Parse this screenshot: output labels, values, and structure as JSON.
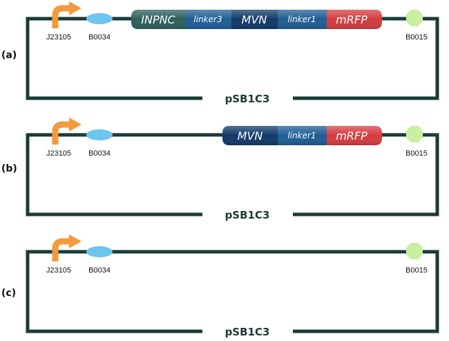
{
  "colors": {
    "backbone": "#1b3b37",
    "promoter": "#f39a3c",
    "rbs": "#6cc4ef",
    "terminator": "#c8f0a0",
    "INPNC": "#2f5f5b",
    "linker3": "#1e5e96",
    "MVN": "#123a68",
    "linker1": "#1f5d94",
    "mRFP": "#d33c40"
  },
  "icons": {
    "promoter": "bent-arrow-icon",
    "rbs": "ellipse-icon",
    "terminator": "octagon-icon"
  },
  "panels": [
    {
      "label": "(a)",
      "plasmid": "pSB1C3",
      "promoter": "J23105",
      "rbs": "B0034",
      "terminator": "B0015",
      "fusion": [
        "INPNC",
        "linker3",
        "MVN",
        "linker1",
        "mRFP"
      ]
    },
    {
      "label": "(b)",
      "plasmid": "pSB1C3",
      "promoter": "J23105",
      "rbs": "B0034",
      "terminator": "B0015",
      "fusion": [
        "MVN",
        "linker1",
        "mRFP"
      ]
    },
    {
      "label": "(c)",
      "plasmid": "pSB1C3",
      "promoter": "J23105",
      "rbs": "B0034",
      "terminator": "B0015",
      "fusion": []
    }
  ]
}
